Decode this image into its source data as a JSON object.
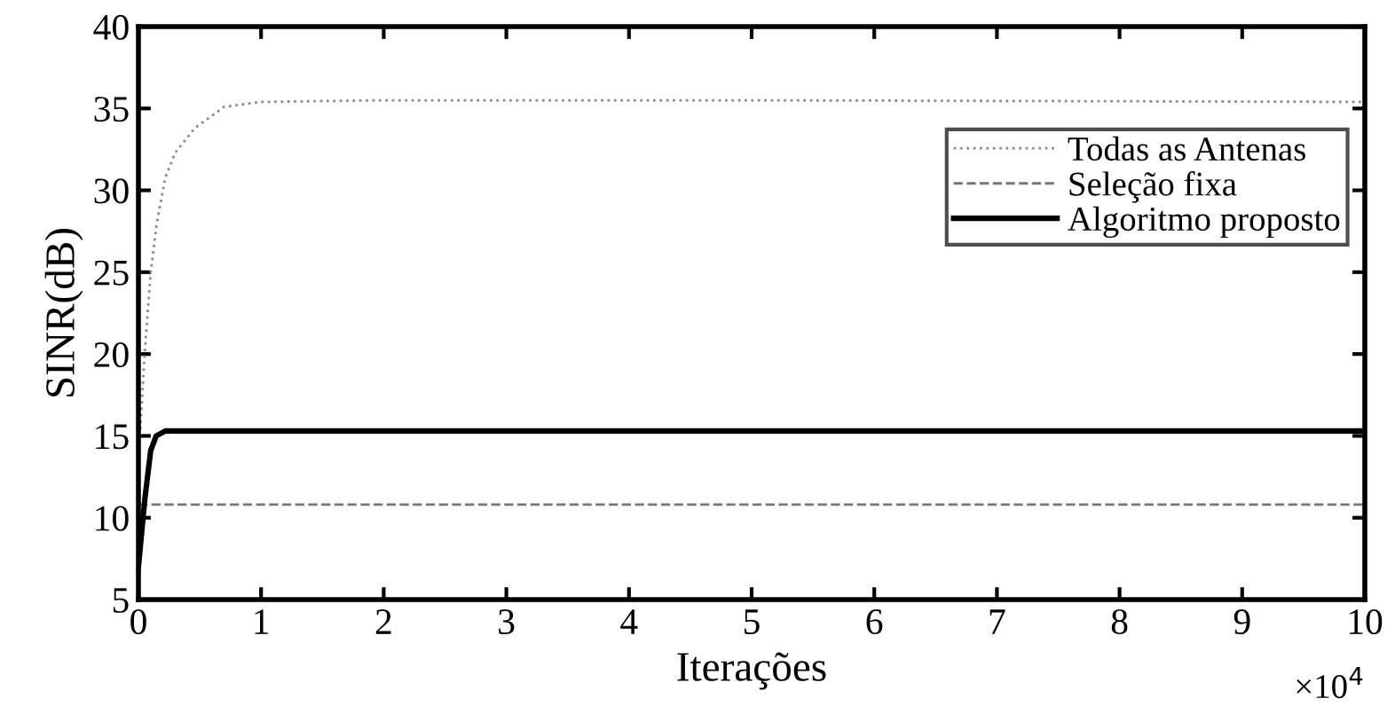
{
  "chart_data": {
    "type": "line",
    "xlabel": "Iterações",
    "ylabel": "SINR(dB)",
    "xlim": [
      0,
      10
    ],
    "xticks": [
      0,
      1,
      2,
      3,
      4,
      5,
      6,
      7,
      8,
      9,
      10
    ],
    "ylim": [
      5,
      40
    ],
    "yticks": [
      5,
      10,
      15,
      20,
      25,
      30,
      35,
      40
    ],
    "grid": false,
    "legend": "right",
    "annotations": [
      "×10$^{4}$"
    ],
    "series": [
      {
        "name": "Todas as Antenas",
        "color": "#8a8a8a",
        "line_style": "dotted",
        "x": [
          0,
          0.02,
          0.05,
          0.1,
          0.15,
          0.22,
          0.3,
          0.46,
          0.7,
          1,
          2,
          5,
          10
        ],
        "values": [
          13,
          16,
          20,
          25,
          28,
          30.8,
          32.3,
          33.8,
          35.1,
          35.4,
          35.5,
          35.5,
          35.4
        ]
      },
      {
        "name": "Seleção fixa",
        "color": "#777777",
        "line_style": "dashed",
        "x": [
          0,
          10
        ],
        "values": [
          10.8,
          10.8
        ]
      },
      {
        "name": "Algoritmo proposto",
        "color": "#000000",
        "line_style": "solid",
        "x": [
          0,
          0.025,
          0.053,
          0.1,
          0.145,
          0.22,
          10
        ],
        "values": [
          7,
          9,
          11.2,
          14.1,
          15,
          15.3,
          15.3
        ]
      }
    ]
  }
}
